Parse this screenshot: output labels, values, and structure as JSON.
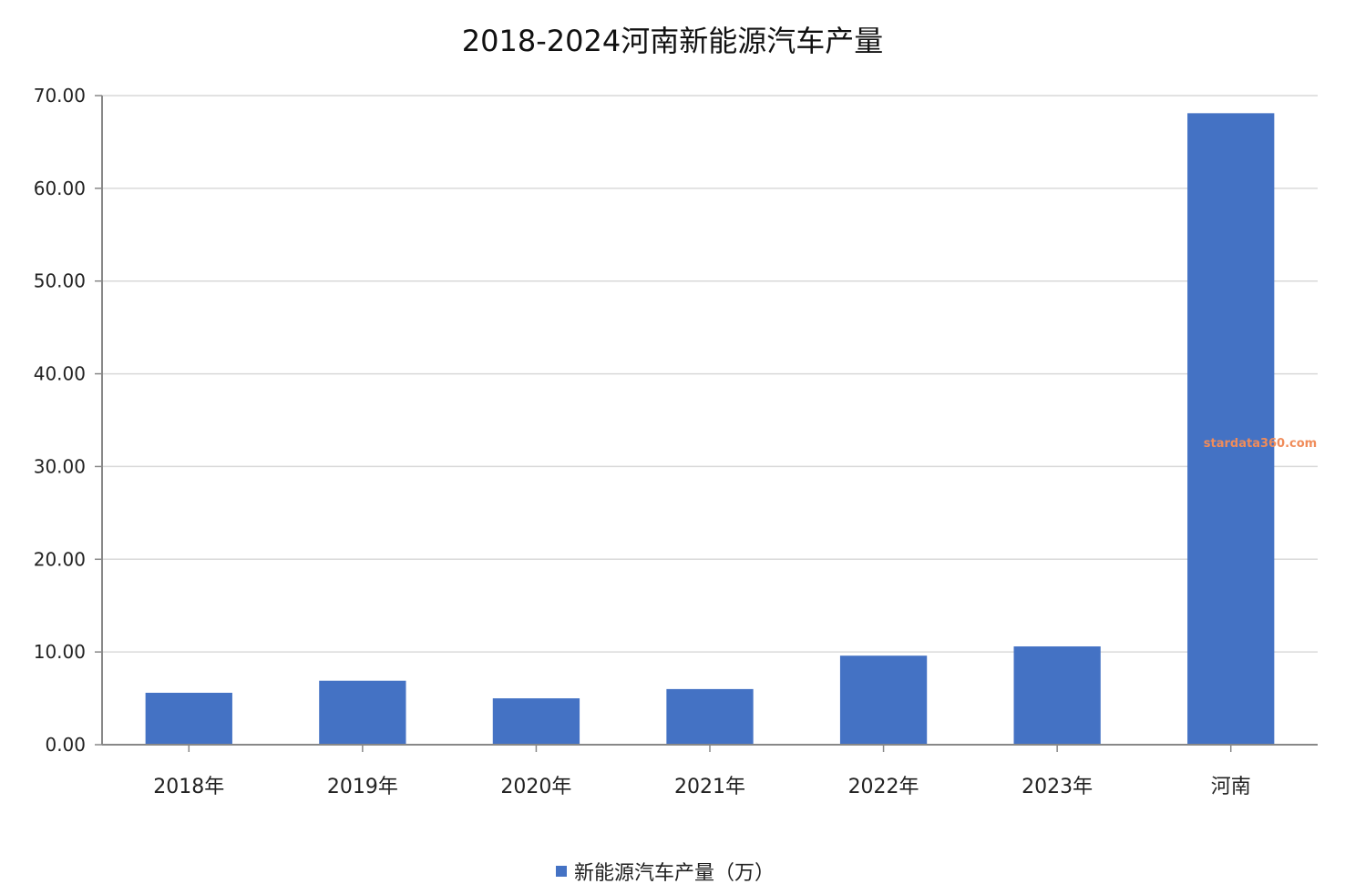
{
  "chart_data": {
    "type": "bar",
    "title": "2018-2024河南新能源汽车产量",
    "categories": [
      "2018年",
      "2019年",
      "2020年",
      "2021年",
      "2022年",
      "2023年",
      "河南"
    ],
    "series": [
      {
        "name": "新能源汽车产量（万）",
        "values": [
          5.6,
          6.9,
          5.0,
          6.0,
          9.6,
          10.6,
          68.1
        ],
        "color": "#4472c4"
      }
    ],
    "ylim": [
      0,
      70
    ],
    "yticks": [
      0,
      10,
      20,
      30,
      40,
      50,
      60,
      70
    ],
    "ytick_labels": [
      "0.00",
      "10.00",
      "20.00",
      "30.00",
      "40.00",
      "50.00",
      "60.00",
      "70.00"
    ],
    "grid": true,
    "legend_position": "bottom-center",
    "watermark": "stardata360.com"
  }
}
